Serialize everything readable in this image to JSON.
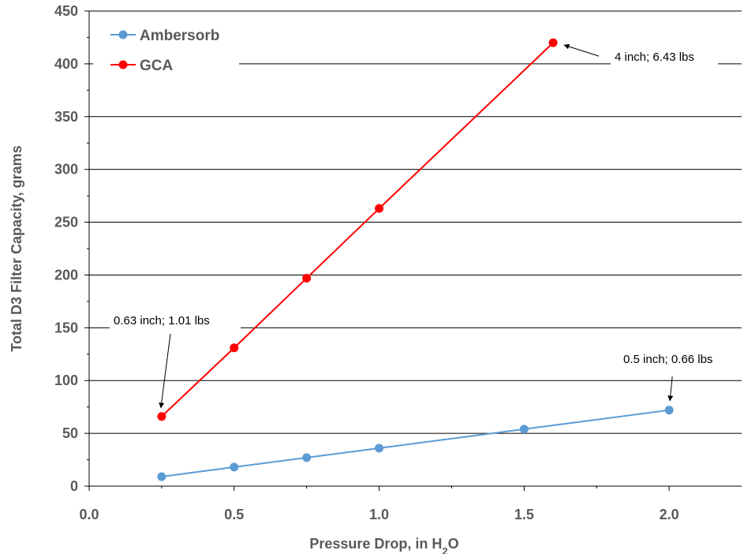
{
  "chart_data": {
    "type": "line",
    "title": "",
    "xlabel": "Pressure Drop, in H",
    "xlabel_sub": "2",
    "xlabel_end": "O",
    "ylabel": "Total D3 Filter Capacity, grams",
    "xlim": [
      0,
      2.25
    ],
    "ylim": [
      0,
      450
    ],
    "x_ticks": [
      0.0,
      0.5,
      1.0,
      1.5,
      2.0
    ],
    "x_tick_labels": [
      "0.0",
      "0.5",
      "1.0",
      "1.5",
      "2.0"
    ],
    "y_ticks": [
      0,
      50,
      100,
      150,
      200,
      250,
      300,
      350,
      400,
      450
    ],
    "y_tick_labels": [
      "0",
      "50",
      "100",
      "150",
      "200",
      "250",
      "300",
      "350",
      "400",
      "450"
    ],
    "grid": "horizontal",
    "legend_position": "top-left",
    "series": [
      {
        "name": "Ambersorb",
        "color": "#5B9BD5",
        "x": [
          0.25,
          0.5,
          0.75,
          1.0,
          1.5,
          2.0
        ],
        "y": [
          9,
          18,
          27,
          36,
          54,
          72
        ]
      },
      {
        "name": "GCA",
        "color": "#FF0000",
        "x": [
          0.25,
          0.5,
          0.75,
          1.0,
          1.6
        ],
        "y": [
          66,
          131,
          197,
          263,
          420
        ]
      }
    ],
    "annotations": [
      {
        "text": "4 inch; 6.43 lbs",
        "x": 1.6,
        "y": 420
      },
      {
        "text": "0.63 inch; 1.01 lbs",
        "x": 0.25,
        "y": 66
      },
      {
        "text": "0.5 inch; 0.66 lbs",
        "x": 2.0,
        "y": 72
      }
    ]
  }
}
